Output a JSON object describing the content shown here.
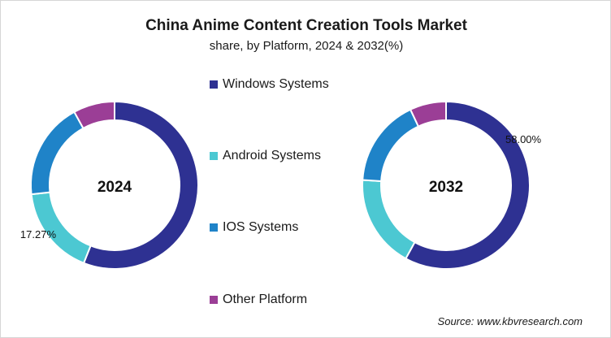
{
  "chart_data": {
    "type": "pie",
    "title": "China Anime Content Creation Tools Market",
    "subtitle": "share, by Platform, 2024 & 2032(%)",
    "legend_position": "center",
    "categories": [
      "Windows Systems",
      "Android Systems",
      "IOS Systems",
      "Other Platform"
    ],
    "colors": [
      "#2E3192",
      "#4CC8D2",
      "#1F83C8",
      "#9B3E96"
    ],
    "charts": [
      {
        "center_label": "2024",
        "values": [
          56.0,
          17.27,
          18.73,
          8.0
        ],
        "data_labels": [
          {
            "category": "Android Systems",
            "text": "17.27%"
          }
        ]
      },
      {
        "center_label": "2032",
        "values": [
          58.0,
          18.0,
          17.0,
          7.0
        ],
        "data_labels": [
          {
            "category": "Windows Systems",
            "text": "58.00%"
          }
        ]
      }
    ]
  },
  "source": "Source: www.kbvresearch.com"
}
